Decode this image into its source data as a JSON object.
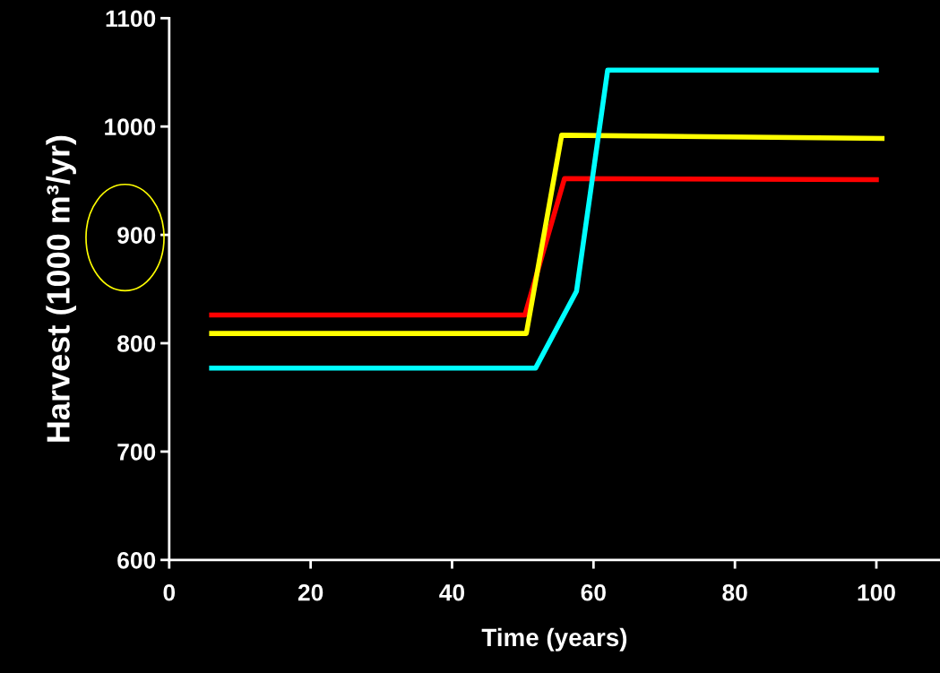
{
  "chart_data": {
    "type": "line",
    "xlabel": "Time (years)",
    "ylabel": "Harvest (1000 m³/yr)",
    "xlim": [
      0,
      109
    ],
    "xticks": [
      0,
      20,
      40,
      60,
      80,
      100
    ],
    "ylim": [
      600,
      1100
    ],
    "yticks": [
      600,
      700,
      800,
      900,
      1000,
      1100
    ],
    "grid": false,
    "marker": "none",
    "line_style": "solid",
    "series": [
      {
        "color": "#ff0000",
        "x": [
          6,
          50.3,
          55.9,
          100
        ],
        "values": [
          826,
          826,
          952,
          951
        ]
      },
      {
        "color": "#ffff00",
        "x": [
          6,
          50.5,
          55.5,
          100.8
        ],
        "values": [
          809,
          809,
          992,
          989
        ]
      },
      {
        "color": "#00ffff",
        "x": [
          6,
          51.8,
          57.6,
          62,
          100
        ],
        "values": [
          777,
          777,
          848,
          1052,
          1052
        ]
      }
    ]
  }
}
